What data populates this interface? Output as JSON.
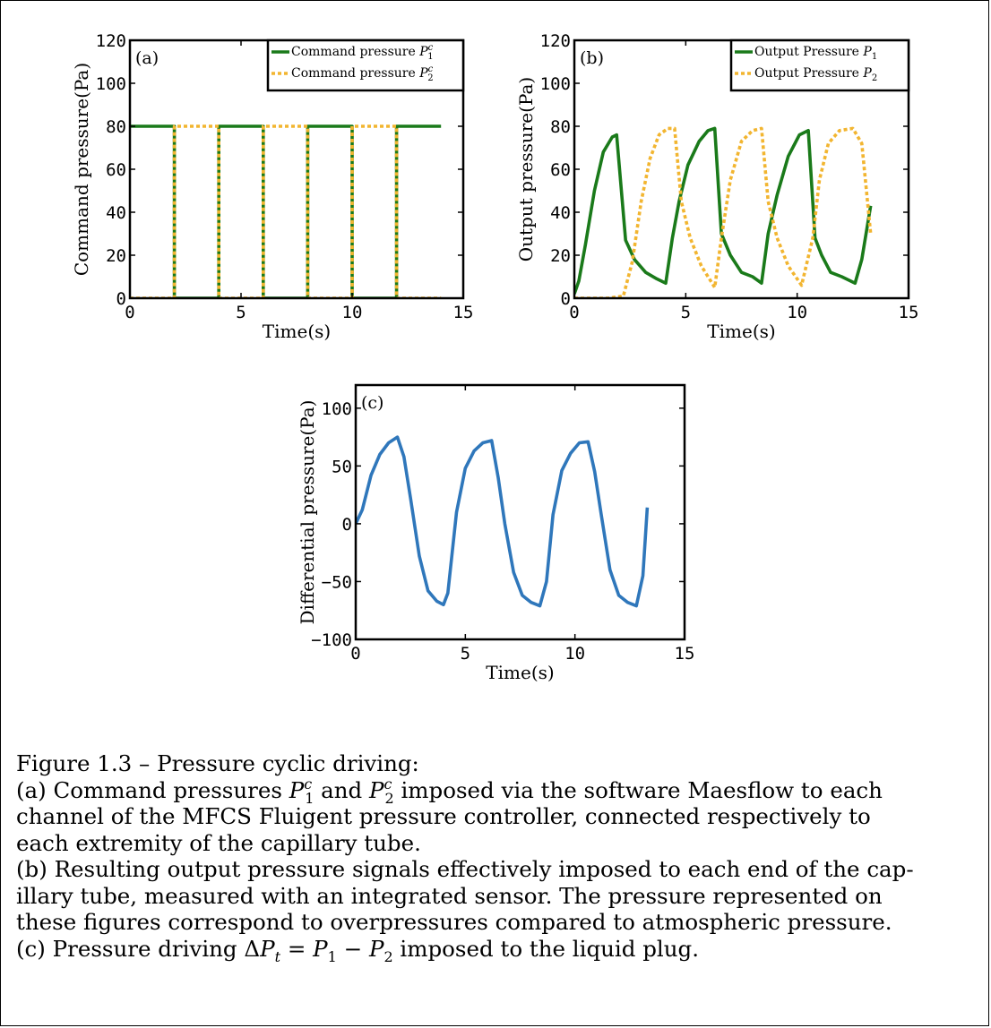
{
  "chart_data": [
    {
      "id": "a",
      "type": "line",
      "panel_label": "(a)",
      "xlabel": "Time(s)",
      "ylabel": "Command pressure(Pa)",
      "xlim": [
        0,
        15
      ],
      "ylim": [
        0,
        120
      ],
      "xticks": [
        "0",
        "5",
        "10",
        "15"
      ],
      "yticks": [
        "0",
        "20",
        "40",
        "60",
        "80",
        "100",
        "120"
      ],
      "legend_position": "top-right",
      "series": [
        {
          "name": "Command pressure P₁ᶜ",
          "color": "#1a7a1a",
          "style": "solid",
          "x": [
            0,
            2,
            2,
            4,
            4,
            6,
            6,
            8,
            8,
            10,
            10,
            12,
            12,
            14
          ],
          "y": [
            80,
            80,
            0,
            0,
            80,
            80,
            0,
            0,
            80,
            80,
            0,
            0,
            80,
            80
          ]
        },
        {
          "name": "Command pressure P₂ᶜ",
          "color": "#f2b530",
          "style": "dotted",
          "x": [
            0,
            2,
            2,
            4,
            4,
            6,
            6,
            8,
            8,
            10,
            10,
            12,
            12,
            14
          ],
          "y": [
            0,
            0,
            80,
            80,
            0,
            0,
            80,
            80,
            0,
            0,
            80,
            80,
            0,
            0
          ]
        }
      ]
    },
    {
      "id": "b",
      "type": "line",
      "panel_label": "(b)",
      "xlabel": "Time(s)",
      "ylabel": "Output pressure(Pa)",
      "xlim": [
        0,
        15
      ],
      "ylim": [
        0,
        120
      ],
      "xticks": [
        "0",
        "5",
        "10",
        "15"
      ],
      "yticks": [
        "0",
        "20",
        "40",
        "60",
        "80",
        "100",
        "120"
      ],
      "legend_position": "top-right",
      "series": [
        {
          "name": "Output Pressure P₁",
          "color": "#1a7a1a",
          "style": "solid",
          "x": [
            0,
            0.2,
            0.5,
            0.9,
            1.3,
            1.7,
            1.9,
            2.3,
            2.7,
            3.2,
            3.7,
            4.1,
            4.4,
            4.7,
            5.1,
            5.6,
            6.0,
            6.3,
            6.6,
            7.0,
            7.5,
            8.0,
            8.4,
            8.7,
            9.1,
            9.6,
            10.1,
            10.5,
            10.8,
            11.1,
            11.5,
            12.0,
            12.6,
            12.9,
            13.3
          ],
          "y": [
            2,
            8,
            25,
            50,
            68,
            75,
            76,
            27,
            18,
            12,
            9,
            7,
            28,
            45,
            62,
            73,
            78,
            79,
            30,
            20,
            12,
            10,
            7,
            30,
            48,
            66,
            76,
            78,
            28,
            20,
            12,
            10,
            7,
            18,
            43
          ]
        },
        {
          "name": "Output Pressure P₂",
          "color": "#f2b530",
          "style": "dotted",
          "x": [
            0,
            1.5,
            2.2,
            2.6,
            3.0,
            3.4,
            3.8,
            4.2,
            4.5,
            4.8,
            5.2,
            5.7,
            6.3,
            6.6,
            7.0,
            7.5,
            8.0,
            8.4,
            8.7,
            9.1,
            9.6,
            10.2,
            10.7,
            11.0,
            11.4,
            11.9,
            12.5,
            12.9,
            13.3
          ],
          "y": [
            0,
            0,
            1,
            17,
            45,
            65,
            76,
            79,
            79,
            45,
            28,
            15,
            5,
            28,
            55,
            73,
            78,
            79,
            45,
            28,
            15,
            6,
            28,
            55,
            72,
            78,
            79,
            72,
            30
          ]
        }
      ]
    },
    {
      "id": "c",
      "type": "line",
      "panel_label": "(c)",
      "xlabel": "Time(s)",
      "ylabel": "Differential pressure(Pa)",
      "xlim": [
        0,
        15
      ],
      "ylim": [
        -100,
        120
      ],
      "xticks": [
        "0",
        "5",
        "10",
        "15"
      ],
      "yticks": [
        "−100",
        "−50",
        "0",
        "50",
        "100"
      ],
      "ytick_values": [
        -100,
        -50,
        0,
        50,
        100
      ],
      "series": [
        {
          "name": "",
          "color": "#2f77bb",
          "style": "solid",
          "x": [
            0,
            0.3,
            0.7,
            1.1,
            1.5,
            1.9,
            2.2,
            2.5,
            2.9,
            3.3,
            3.7,
            4.0,
            4.2,
            4.6,
            5.0,
            5.4,
            5.8,
            6.2,
            6.5,
            6.8,
            7.2,
            7.6,
            8.0,
            8.4,
            8.7,
            9.0,
            9.4,
            9.8,
            10.2,
            10.6,
            10.9,
            11.2,
            11.6,
            12.0,
            12.4,
            12.8,
            13.1,
            13.3
          ],
          "y": [
            0,
            12,
            42,
            60,
            70,
            75,
            58,
            22,
            -28,
            -58,
            -67,
            -70,
            -60,
            10,
            48,
            63,
            70,
            72,
            40,
            0,
            -42,
            -62,
            -68,
            -71,
            -50,
            8,
            46,
            61,
            70,
            71,
            45,
            8,
            -40,
            -62,
            -68,
            -71,
            -45,
            14
          ]
        }
      ]
    }
  ],
  "caption": {
    "lines": [
      [
        "Figure 1.3 – Pressure cyclic driving:"
      ],
      [
        "(a) Command pressures ",
        {
          "v": "P",
          "sub": "1",
          "sup": "c"
        },
        " and ",
        {
          "v": "P",
          "sub": "2",
          "sup": "c"
        },
        " imposed via the software Maesflow to each"
      ],
      [
        "channel of the MFCS Fluigent pressure controller, connected respectively to"
      ],
      [
        "each extremity of the capillary tube."
      ],
      [
        "(b) Resulting output pressure signals effectively imposed to each end of the cap-"
      ],
      [
        "illary tube, measured with an integrated sensor. The pressure represented on"
      ],
      [
        "these figures correspond to overpressures compared to atmospheric pressure."
      ],
      [
        "(c) Pressure driving Δ",
        {
          "v": "P",
          "sub": "t"
        },
        " = ",
        {
          "v": "P",
          "sub": "1"
        },
        " − ",
        {
          "v": "P",
          "sub": "2"
        },
        " imposed to the liquid plug."
      ]
    ]
  }
}
